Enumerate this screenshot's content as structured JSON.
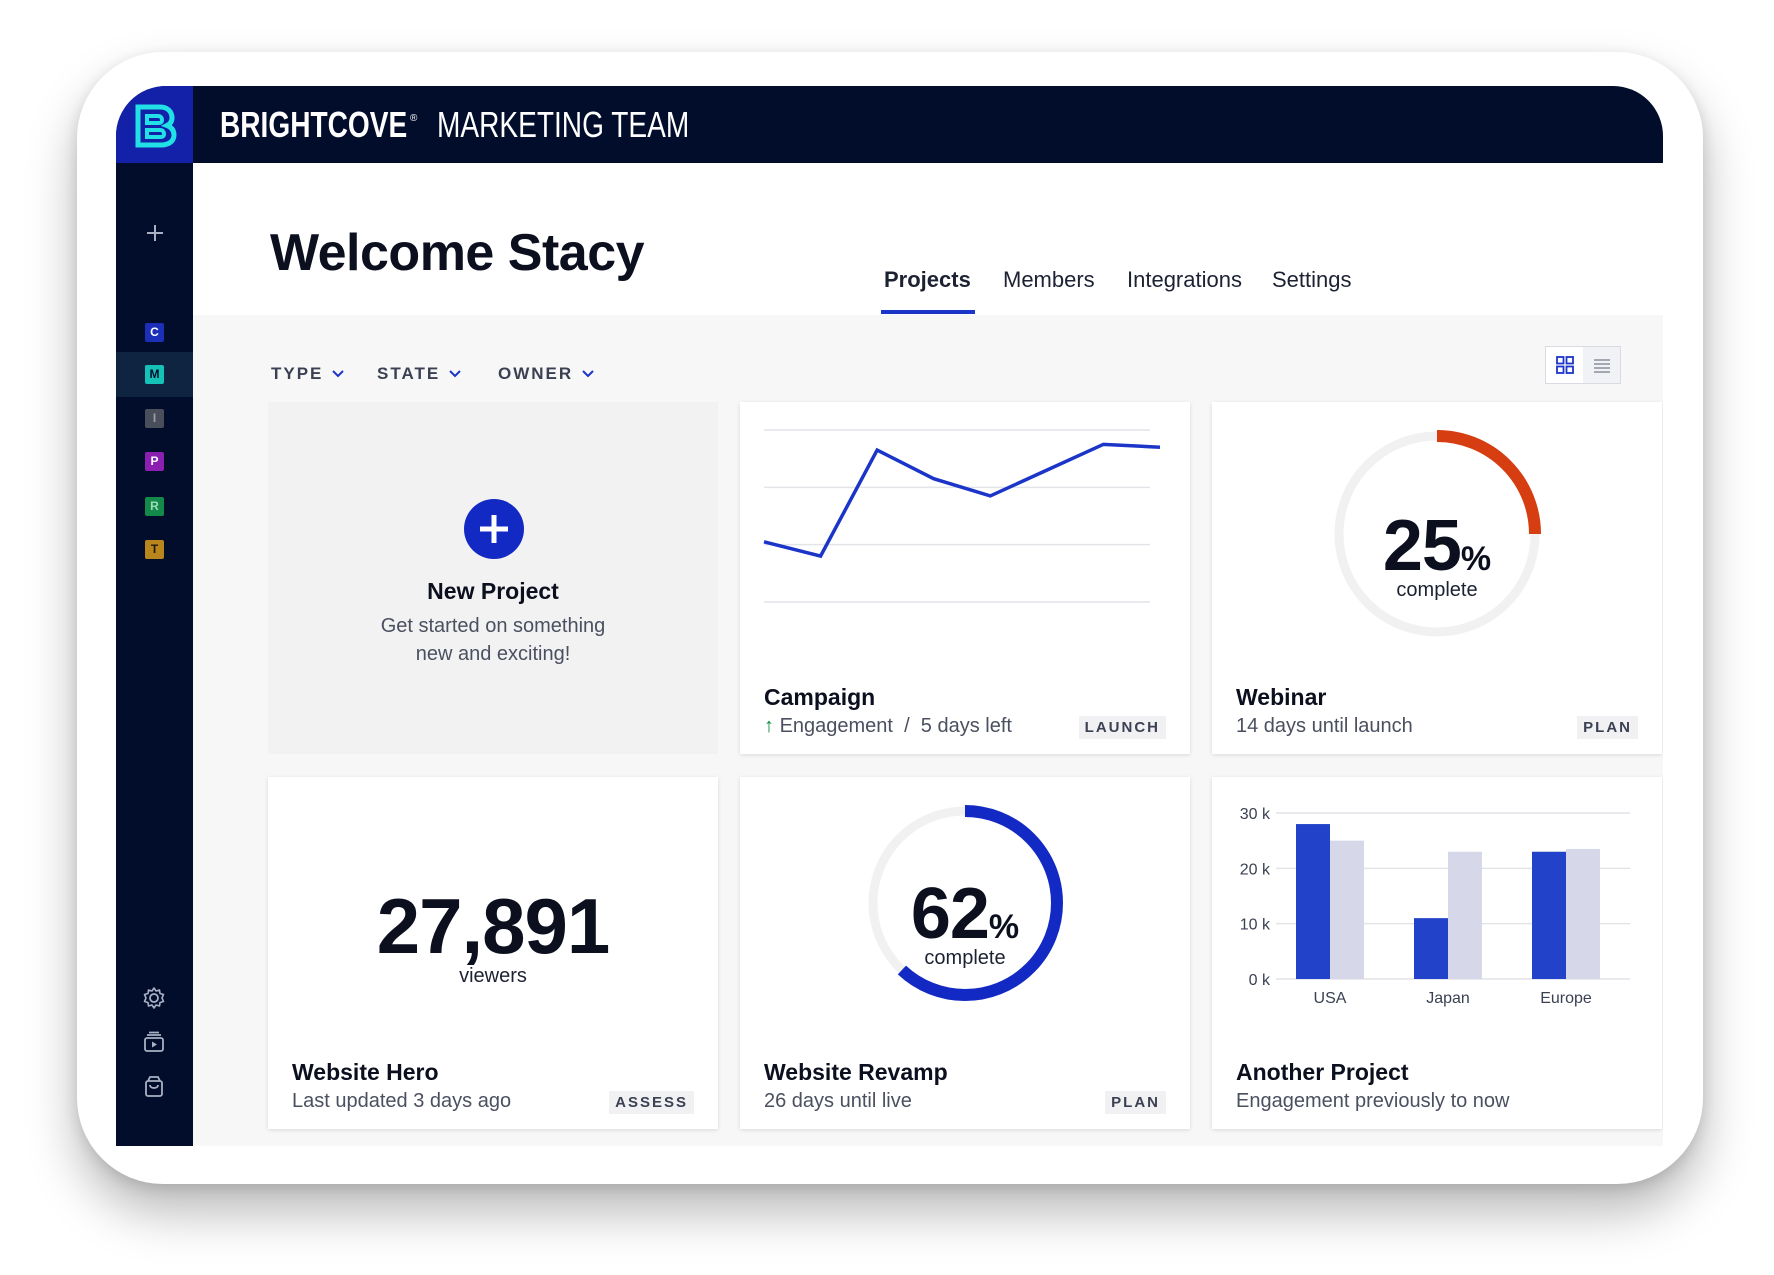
{
  "app": {
    "logo_letter": "B",
    "brand": "BRIGHTCOVE",
    "brand_mark": "®",
    "team": "MARKETING TEAM"
  },
  "sidebar": {
    "add_icon": "plus-icon",
    "items": [
      {
        "letter": "C",
        "color": "#1c2fb8"
      },
      {
        "letter": "M",
        "color": "#14c2b8",
        "active": true
      },
      {
        "letter": "I",
        "color": "#4a4e5a"
      },
      {
        "letter": "P",
        "color": "#8a1fb0"
      },
      {
        "letter": "R",
        "color": "#138a4a"
      },
      {
        "letter": "T",
        "color": "#b8861c"
      }
    ],
    "bottom_icons": [
      "gear-icon",
      "media-library-icon",
      "shopping-bag-icon"
    ]
  },
  "header": {
    "welcome": "Welcome Stacy",
    "tabs": [
      {
        "label": "Projects",
        "active": true
      },
      {
        "label": "Members"
      },
      {
        "label": "Integrations"
      },
      {
        "label": "Settings"
      }
    ]
  },
  "filters": [
    {
      "label": "TYPE"
    },
    {
      "label": "STATE"
    },
    {
      "label": "OWNER"
    }
  ],
  "view_toggle": {
    "active": "grid",
    "options": [
      "grid-view-icon",
      "list-view-icon"
    ]
  },
  "cards": {
    "new_project": {
      "title": "New Project",
      "subtitle_line1": "Get started on something",
      "subtitle_line2": "new and exciting!"
    },
    "campaign": {
      "title": "Campaign",
      "arrow": "↑",
      "subtitle": "Engagement  /  5 days left",
      "badge": "LAUNCH",
      "chart_data": {
        "type": "line",
        "values": [
          2.1,
          1.6,
          5.3,
          4.3,
          3.7,
          4.6,
          5.5,
          5.4
        ],
        "ylim": [
          0,
          6
        ],
        "grid": true,
        "color": "#1b35c8"
      }
    },
    "webinar": {
      "title": "Webinar",
      "subtitle": "14 days until launch",
      "badge": "PLAN",
      "percent": "25",
      "percent_sign": "%",
      "caption": "complete",
      "progress": 0.25,
      "color": "#d63d10"
    },
    "website_hero": {
      "title": "Website Hero",
      "subtitle": "Last updated 3 days ago",
      "badge": "ASSESS",
      "number": "27,891",
      "caption": "viewers"
    },
    "website_revamp": {
      "title": "Website Revamp",
      "subtitle": "26 days until live",
      "badge": "PLAN",
      "percent": "62",
      "percent_sign": "%",
      "caption": "complete",
      "progress": 0.62,
      "color": "#1329c4"
    },
    "another_project": {
      "title": "Another Project",
      "subtitle": "Engagement previously to now",
      "chart_data": {
        "type": "bar",
        "categories": [
          "USA",
          "Japan",
          "Europe"
        ],
        "series": [
          {
            "values": [
              28,
              11,
              23
            ],
            "color": "#2243c9"
          },
          {
            "values": [
              25,
              23,
              23.5
            ],
            "color": "#d6d8ea"
          }
        ],
        "yticks": [
          "30 k",
          "20 k",
          "10 k",
          "0 k"
        ],
        "tick_values": [
          30,
          20,
          10,
          0
        ],
        "ylim": [
          0,
          30
        ],
        "grid": true
      }
    }
  }
}
